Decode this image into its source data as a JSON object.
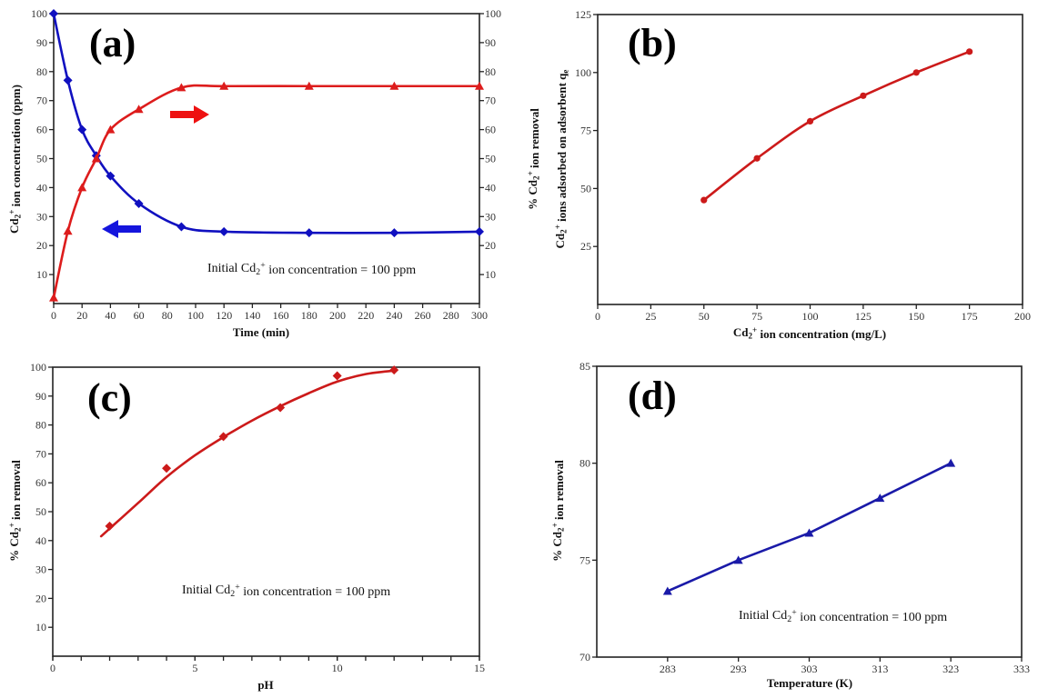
{
  "chart_data": [
    {
      "id": "a",
      "type": "line",
      "panel_label": "(a)",
      "xlabel": "Time (min)",
      "ylabel": {
        "pre": "Cd",
        "sub": "2",
        "sup": "+",
        "post": " ion concentration (ppm)"
      },
      "y2label": {
        "pre": "% Cd",
        "sub": "2",
        "sup": "+",
        "post": " ion removal"
      },
      "xlim": [
        0,
        300
      ],
      "ylim": [
        0,
        100
      ],
      "y2lim": [
        0,
        100
      ],
      "xticks": [
        0,
        20,
        40,
        60,
        80,
        100,
        120,
        140,
        160,
        180,
        200,
        220,
        240,
        260,
        280,
        300
      ],
      "yticks": [
        10,
        20,
        30,
        40,
        50,
        60,
        70,
        80,
        90,
        100
      ],
      "y2ticks": [
        10,
        20,
        30,
        40,
        50,
        60,
        70,
        80,
        90,
        100
      ],
      "annotation": {
        "pre": "Initial Cd",
        "sub": "2",
        "sup": "+",
        "post": " ion concentration = 100 ppm"
      },
      "series": [
        {
          "name": "Cd2+ ion concentration",
          "axis": "left",
          "marker": "diamond",
          "color": "#1010c0",
          "x": [
            0,
            10,
            20,
            30,
            40,
            60,
            90,
            120,
            180,
            240,
            300
          ],
          "y": [
            100,
            77,
            60,
            51,
            44,
            34.5,
            26.5,
            24.8,
            24.4,
            24.4,
            24.8
          ]
        },
        {
          "name": "% Cd2+ ion removal",
          "axis": "right",
          "marker": "triangle",
          "color": "#dd1c1c",
          "x": [
            0,
            10,
            20,
            30,
            40,
            60,
            90,
            120,
            180,
            240,
            300
          ],
          "y": [
            2,
            25,
            40,
            50,
            60,
            67,
            74.5,
            75,
            75,
            75,
            75
          ]
        }
      ],
      "arrows": [
        {
          "direction": "right",
          "color": "#ee1111",
          "points_to": "right axis"
        },
        {
          "direction": "left",
          "color": "#1515dd",
          "points_to": "left axis"
        }
      ]
    },
    {
      "id": "b",
      "type": "line",
      "panel_label": "(b)",
      "xlabel": {
        "pre": "Cd",
        "sub": "2",
        "sup": "+",
        "post": " ion concentration (mg/L)"
      },
      "ylabel": {
        "pre": "Cd",
        "sub": "2",
        "sup": "+",
        "post": " ions adsorbed on adsorbent  q",
        "sub2": "e"
      },
      "xlim": [
        0,
        200
      ],
      "ylim": [
        0,
        125
      ],
      "xticks": [
        0,
        25,
        50,
        75,
        100,
        125,
        150,
        175,
        200
      ],
      "yticks": [
        25,
        50,
        75,
        100,
        125
      ],
      "series": [
        {
          "name": "qe",
          "marker": "circle",
          "color": "#cc1a1a",
          "x": [
            50,
            75,
            100,
            125,
            150,
            175
          ],
          "y": [
            45,
            63,
            79,
            90,
            100,
            109
          ]
        }
      ]
    },
    {
      "id": "c",
      "type": "line",
      "panel_label": "(c)",
      "xlabel": "pH",
      "ylabel": {
        "pre": "% Cd",
        "sub": "2",
        "sup": "+",
        "post": " ion removal"
      },
      "xlim": [
        0,
        15
      ],
      "ylim": [
        0,
        100
      ],
      "xticks": [
        0,
        5,
        10,
        15
      ],
      "xminor": 1,
      "yticks": [
        10,
        20,
        30,
        40,
        50,
        60,
        70,
        80,
        90,
        100
      ],
      "annotation": {
        "pre": "Initial Cd",
        "sub": "2",
        "sup": "+",
        "post": " ion concentration = 100 ppm"
      },
      "series": [
        {
          "name": "% removal vs pH",
          "marker": "diamond",
          "color": "#cc1a1a",
          "x": [
            2,
            4,
            6,
            8,
            10,
            12
          ],
          "y": [
            45,
            65,
            76,
            86,
            97,
            99
          ],
          "fit_x": [
            1.7,
            3,
            4,
            5,
            6,
            7,
            8,
            9,
            10,
            11,
            12
          ],
          "fit_y": [
            41.5,
            53,
            62,
            69.5,
            75.8,
            81.5,
            86.5,
            91,
            95,
            97.6,
            98.8
          ]
        }
      ]
    },
    {
      "id": "d",
      "type": "line",
      "panel_label": "(d)",
      "xlabel": "Temperature (K)",
      "ylabel": {
        "pre": "% Cd",
        "sub": "2",
        "sup": "+",
        "post": " ion removal"
      },
      "xlim": [
        273,
        333
      ],
      "ylim": [
        70,
        85
      ],
      "xticks": [
        283,
        293,
        303,
        313,
        323,
        333
      ],
      "yticks": [
        70,
        75,
        80,
        85
      ],
      "annotation": {
        "pre": "Initial Cd",
        "sub": "2",
        "sup": "+",
        "post": " ion concentration = 100 ppm"
      },
      "series": [
        {
          "name": "% removal vs T",
          "marker": "triangle",
          "color": "#1a1aa8",
          "x": [
            283,
            293,
            303,
            313,
            323
          ],
          "y": [
            73.4,
            75,
            76.4,
            78.2,
            80
          ]
        }
      ]
    }
  ]
}
